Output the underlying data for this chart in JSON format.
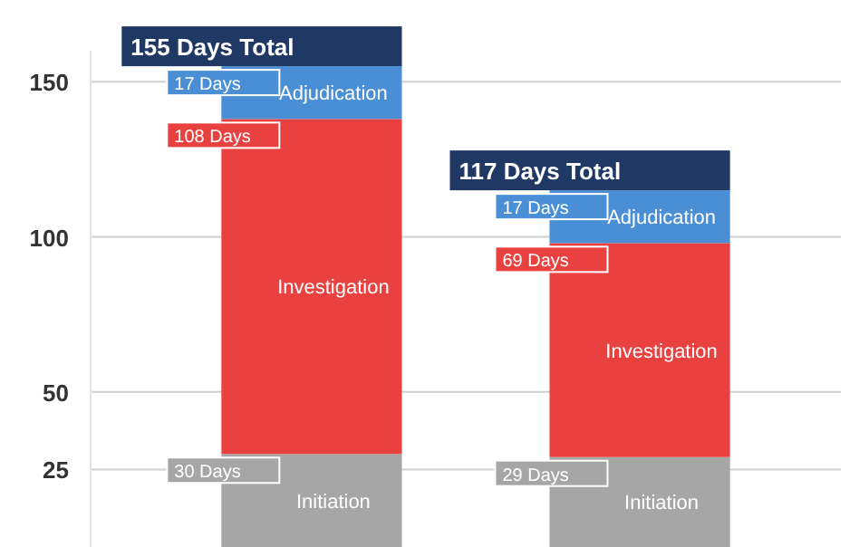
{
  "chart_data": {
    "type": "bar",
    "stacked": true,
    "categories": [
      null,
      null
    ],
    "series": [
      {
        "name": "Initiation",
        "color": "#a6a6a6",
        "values": [
          30,
          29
        ],
        "value_labels": [
          "30 Days",
          "29 Days"
        ]
      },
      {
        "name": "Investigation",
        "color": "#e8413f",
        "values": [
          108,
          69
        ],
        "value_labels": [
          "108 Days",
          "69 Days"
        ]
      },
      {
        "name": "Adjudication",
        "color": "#4a8fd6",
        "values": [
          17,
          17
        ],
        "value_labels": [
          "17 Days",
          "17 Days"
        ]
      }
    ],
    "totals": [
      "155 Days Total",
      "117 Days Total"
    ],
    "ylim": [
      0,
      160
    ],
    "yticks": [
      25,
      50,
      100,
      150
    ],
    "grid": "y",
    "legend": false
  }
}
